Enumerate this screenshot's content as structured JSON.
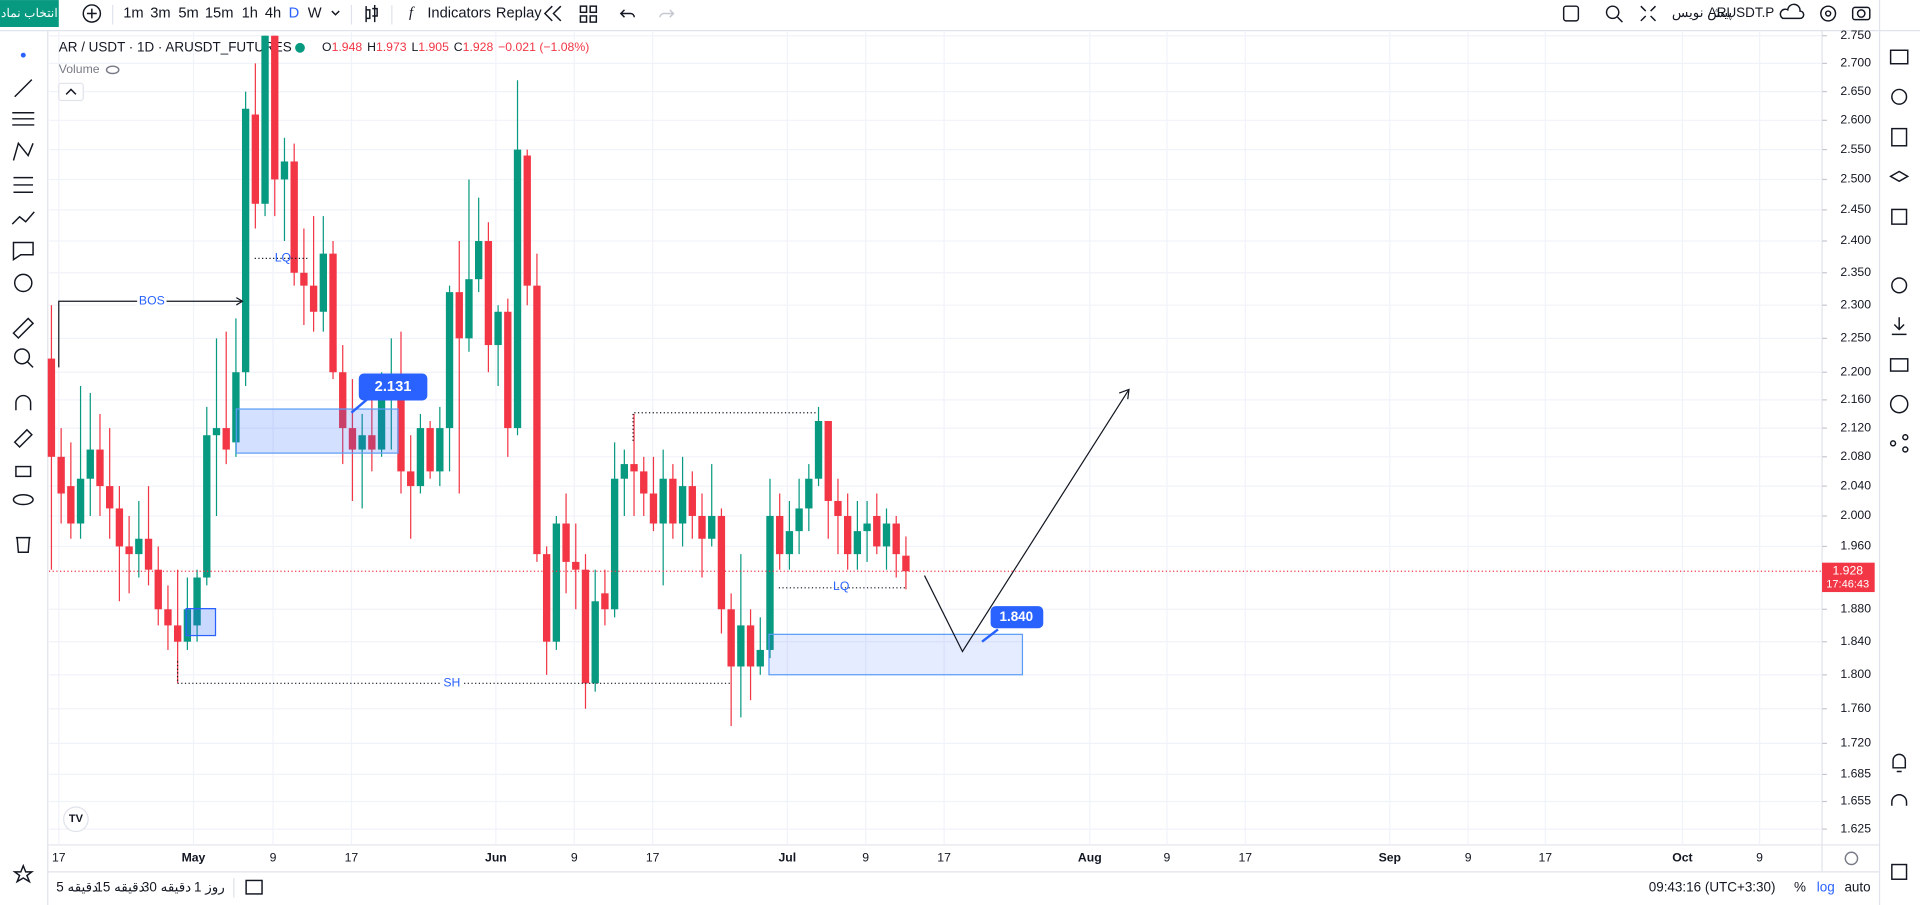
{
  "top_bar": {
    "symbol_button": "انتخاب نماد",
    "intervals": [
      "1m",
      "3m",
      "5m",
      "15m",
      "1h",
      "4h",
      "D",
      "W"
    ],
    "indicators": "Indicators",
    "replay": "Replay",
    "draft": "پیش نویس",
    "symbol": "ARUSDT.P"
  },
  "chart_data": {
    "type": "candlestick",
    "title": "AR / USDT · 1D · ARUSDT_FUTURES",
    "ohlc_labels": [
      "O",
      "H",
      "L",
      "C"
    ],
    "change": "−0.021 (−1.08%)",
    "volume_label": "Volume",
    "open": [
      2.22,
      2.08,
      2.04,
      1.99,
      2.05,
      2.09,
      2.04,
      2.01,
      1.96,
      1.95,
      1.97,
      1.93,
      1.88,
      1.86,
      1.84,
      1.86,
      1.92,
      2.11,
      2.12,
      2.1,
      2.2,
      2.61,
      2.46,
      2.75,
      2.5,
      2.53,
      2.35,
      2.33,
      2.29,
      2.38,
      2.2,
      2.12,
      2.09,
      2.11,
      2.09,
      2.17,
      2.19,
      2.06,
      2.04,
      2.12,
      2.06,
      2.12,
      2.32,
      2.25,
      2.34,
      2.4,
      2.24,
      2.29,
      2.12,
      2.54,
      2.33,
      1.95,
      1.84,
      1.99,
      1.94,
      1.93,
      1.79,
      1.9,
      1.88,
      2.05,
      2.07,
      2.06,
      2.03,
      1.99,
      2.05,
      1.99,
      2.04,
      2.0,
      1.97,
      2.0,
      1.88,
      1.81,
      1.86,
      1.81,
      1.83,
      2.0,
      1.95,
      1.98,
      2.01,
      2.05,
      2.13,
      2.02,
      2.0,
      1.95,
      1.98,
      2.0,
      1.96,
      1.99,
      1.948
    ],
    "high": [
      2.3,
      2.12,
      2.1,
      2.18,
      2.17,
      2.14,
      2.12,
      2.04,
      2.0,
      2.02,
      2.04,
      1.96,
      1.91,
      1.93,
      1.92,
      1.93,
      2.15,
      2.25,
      2.26,
      2.28,
      2.65,
      2.7,
      2.75,
      2.75,
      2.57,
      2.56,
      2.42,
      2.44,
      2.44,
      2.4,
      2.24,
      2.19,
      2.14,
      2.18,
      2.2,
      2.25,
      2.26,
      2.11,
      2.14,
      2.13,
      2.15,
      2.33,
      2.4,
      2.5,
      2.47,
      2.43,
      2.3,
      2.31,
      2.67,
      2.55,
      2.38,
      1.96,
      2.0,
      2.03,
      1.99,
      1.95,
      1.93,
      1.93,
      2.1,
      2.09,
      2.14,
      2.08,
      2.08,
      2.09,
      2.07,
      2.08,
      2.06,
      2.03,
      2.07,
      2.01,
      1.9,
      1.95,
      1.88,
      1.87,
      2.05,
      2.03,
      2.02,
      2.05,
      2.07,
      2.15,
      2.13,
      2.05,
      2.03,
      2.02,
      2.02,
      2.03,
      2.01,
      2.0,
      1.973
    ],
    "low": [
      1.93,
      1.99,
      1.97,
      1.97,
      2.0,
      2.0,
      1.97,
      1.89,
      1.9,
      1.92,
      1.91,
      1.86,
      1.83,
      1.79,
      1.83,
      1.84,
      1.91,
      2.0,
      2.07,
      2.08,
      2.18,
      2.42,
      2.44,
      2.44,
      2.4,
      2.33,
      2.27,
      2.26,
      2.26,
      2.19,
      2.07,
      2.02,
      2.01,
      2.06,
      2.08,
      2.09,
      2.03,
      1.97,
      2.03,
      2.05,
      2.04,
      2.06,
      2.03,
      2.23,
      2.32,
      2.2,
      2.18,
      2.08,
      2.11,
      2.3,
      1.94,
      1.8,
      1.83,
      1.9,
      1.88,
      1.76,
      1.78,
      1.86,
      1.87,
      2.0,
      2.0,
      2.0,
      1.98,
      1.91,
      1.97,
      1.96,
      1.97,
      1.92,
      1.96,
      1.85,
      1.74,
      1.75,
      1.77,
      1.8,
      1.82,
      1.93,
      1.93,
      1.95,
      1.98,
      2.04,
      1.97,
      1.95,
      1.93,
      1.93,
      1.94,
      1.95,
      1.93,
      1.92,
      1.905
    ],
    "close": [
      2.08,
      2.03,
      1.99,
      2.05,
      2.09,
      2.04,
      2.01,
      1.96,
      1.95,
      1.97,
      1.93,
      1.88,
      1.86,
      1.84,
      1.88,
      1.92,
      2.11,
      2.12,
      2.09,
      2.2,
      2.62,
      2.46,
      2.75,
      2.5,
      2.53,
      2.35,
      2.33,
      2.29,
      2.38,
      2.2,
      2.12,
      2.09,
      2.11,
      2.09,
      2.17,
      2.19,
      2.06,
      2.04,
      2.12,
      2.06,
      2.12,
      2.32,
      2.25,
      2.34,
      2.4,
      2.24,
      2.29,
      2.12,
      2.55,
      2.33,
      1.95,
      1.84,
      1.99,
      1.94,
      1.93,
      1.79,
      1.89,
      1.88,
      2.05,
      2.07,
      2.06,
      2.03,
      1.99,
      2.05,
      1.99,
      2.04,
      2.0,
      1.97,
      2.0,
      1.88,
      1.81,
      1.86,
      1.81,
      1.83,
      2.0,
      1.95,
      1.98,
      2.01,
      2.05,
      2.13,
      2.02,
      2.0,
      1.95,
      1.98,
      1.99,
      1.96,
      1.99,
      1.95,
      1.928
    ],
    "up_color": "#089981",
    "down_color": "#f23645",
    "log_scale": true,
    "grid": true,
    "ylim": [
      1.608,
      2.757
    ],
    "yticks": [
      {
        "value": 2.75,
        "label": "2.750"
      },
      {
        "value": 2.7,
        "label": "2.700"
      },
      {
        "value": 2.65,
        "label": "2.650"
      },
      {
        "value": 2.6,
        "label": "2.600"
      },
      {
        "value": 2.55,
        "label": "2.550"
      },
      {
        "value": 2.5,
        "label": "2.500"
      },
      {
        "value": 2.45,
        "label": "2.450"
      },
      {
        "value": 2.4,
        "label": "2.400"
      },
      {
        "value": 2.35,
        "label": "2.350"
      },
      {
        "value": 2.3,
        "label": "2.300"
      },
      {
        "value": 2.25,
        "label": "2.250"
      },
      {
        "value": 2.2,
        "label": "2.200"
      },
      {
        "value": 2.16,
        "label": "2.160"
      },
      {
        "value": 2.12,
        "label": "2.120"
      },
      {
        "value": 2.08,
        "label": "2.080"
      },
      {
        "value": 2.04,
        "label": "2.040"
      },
      {
        "value": 2.0,
        "label": "2.000"
      },
      {
        "value": 1.96,
        "label": "1.960"
      },
      {
        "value": 1.88,
        "label": "1.880"
      },
      {
        "value": 1.84,
        "label": "1.840"
      },
      {
        "value": 1.8,
        "label": "1.800"
      },
      {
        "value": 1.76,
        "label": "1.760"
      },
      {
        "value": 1.72,
        "label": "1.720"
      },
      1.685,
      1.655,
      1.625
    ],
    "x_labels": [
      "17",
      "May",
      "9",
      "17",
      "Jun",
      "9",
      "17",
      "Jul",
      "9",
      "17",
      "Aug",
      "9",
      "17",
      "Sep",
      "9",
      "17",
      "Oct",
      "9"
    ],
    "annotations": {
      "bos": "BOS",
      "lq_upper": "LQ",
      "lq_lower": "LQ",
      "sh": "SH",
      "zone_upper": "2.131",
      "zone_lower": "1.840"
    },
    "countdown": "17:46:43"
  },
  "bottom_bar": {
    "ranges": [
      "5 دقیقه",
      "15 دقیقه",
      "30 دقیقه",
      "1 روز"
    ],
    "clock": "09:43:16 (UTC+3:30)",
    "percent": "%",
    "log": "log",
    "auto": "auto"
  }
}
